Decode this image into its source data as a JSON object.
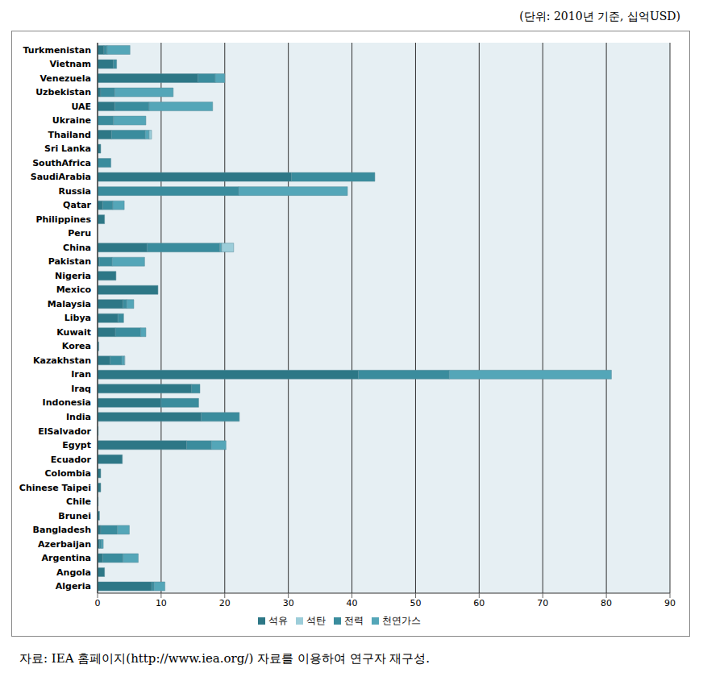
{
  "chart_data": {
    "type": "bar",
    "orientation": "horizontal",
    "stacked": true,
    "grid": true,
    "legend": "bottom",
    "subtitle": "(단위: 2010년 기준, 십억USD)",
    "annotations": [
      "자료: IEA 홈페이지(http://www.iea.org/) 자료를 이용하여 연구자 재구성."
    ],
    "categories": [
      "Turkmenistan",
      "Vietnam",
      "Venezuela",
      "Uzbekistan",
      "UAE",
      "Ukraine",
      "Thailand",
      "Sri Lanka",
      "SouthAfrica",
      "SaudiArabia",
      "Russia",
      "Qatar",
      "Philippines",
      "Peru",
      "China",
      "Pakistan",
      "Nigeria",
      "Mexico",
      "Malaysia",
      "Libya",
      "Kuwait",
      "Korea",
      "Kazakhstan",
      "Iran",
      "Iraq",
      "Indonesia",
      "India",
      "ElSalvador",
      "Egypt",
      "Ecuador",
      "Colombia",
      "Chinese Taipei",
      "Chile",
      "Brunei",
      "Bangladesh",
      "Azerbaijan",
      "Argentina",
      "Angola",
      "Algeria"
    ],
    "series": [
      {
        "name": "석유",
        "color": "#2d7786",
        "values": [
          1.0,
          2.5,
          15.8,
          0.5,
          2.7,
          0,
          2.2,
          0.5,
          0,
          30.5,
          0,
          0.8,
          1.1,
          0,
          7.8,
          0.3,
          2.9,
          9.5,
          4.0,
          3.2,
          2.8,
          0.2,
          2.0,
          41.0,
          14.8,
          10.0,
          16.3,
          0.1,
          14.0,
          3.9,
          0.5,
          0.5,
          0.1,
          0.3,
          0.5,
          0.3,
          0.8,
          1.1,
          8.5
        ]
      },
      {
        "name": "전력",
        "color": "#3a8c9d",
        "values": [
          0.5,
          0.5,
          2.7,
          2.2,
          5.4,
          2.5,
          5.3,
          0,
          2.1,
          13.1,
          22.2,
          1.6,
          0,
          0,
          11.4,
          2.0,
          0,
          0,
          0.6,
          0.9,
          4.0,
          0,
          1.8,
          14.3,
          1.3,
          5.9,
          6.0,
          0,
          3.9,
          0,
          0,
          0,
          0,
          0,
          2.6,
          0.3,
          3.2,
          0,
          0.4
        ]
      },
      {
        "name": "천연가스",
        "color": "#54a6b8",
        "values": [
          3.6,
          0,
          1.5,
          9.2,
          10.0,
          5.1,
          0.6,
          0,
          0,
          0,
          17.1,
          1.8,
          0,
          0,
          0.3,
          5.1,
          0,
          0,
          1.1,
          0,
          0.8,
          0,
          0.4,
          25.5,
          0,
          0,
          0,
          0,
          2.3,
          0,
          0,
          0,
          0,
          0,
          1.9,
          0.3,
          2.4,
          0,
          1.7
        ]
      },
      {
        "name": "석탄",
        "color": "#9ccdd9",
        "values": [
          0,
          0,
          0,
          0,
          0,
          0,
          0.4,
          0,
          0,
          0,
          0,
          0,
          0,
          0,
          1.9,
          0,
          0,
          0,
          0,
          0,
          0,
          0,
          0.1,
          0,
          0,
          0,
          0,
          0,
          0,
          0,
          0,
          0,
          0,
          0,
          0,
          0,
          0,
          0,
          0
        ]
      }
    ],
    "xlim": [
      0,
      90
    ],
    "xticks": [
      0,
      10,
      20,
      30,
      40,
      50,
      60,
      70,
      80,
      90
    ]
  }
}
